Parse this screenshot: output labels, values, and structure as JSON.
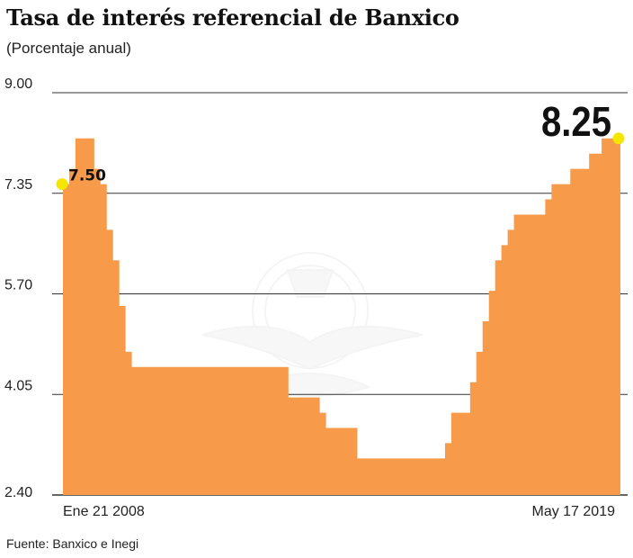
{
  "header": {
    "title": "Tasa de interés referencial de Banxico",
    "subtitle": "(Porcentaje anual)"
  },
  "footer": {
    "source": "Fuente: Banxico e Inegi"
  },
  "colors": {
    "area": "#f79a4a",
    "marker": "#f5e600",
    "gridline": "#333333"
  },
  "watermark_icon": "eagle-globe-emblem-icon",
  "chart_data": {
    "type": "area",
    "title": "Tasa de interés referencial de Banxico",
    "subtitle": "(Porcentaje anual)",
    "step": true,
    "ylim": [
      2.4,
      9.0
    ],
    "yticks": [
      "9.00",
      "7.35",
      "5.70",
      "4.05",
      "2.40"
    ],
    "grid": true,
    "x_labels": [
      "Ene 21 2008",
      "May 17 2019"
    ],
    "start_label": "7.50",
    "end_label": "8.25",
    "series": [
      {
        "values": [
          7.5,
          7.75,
          8.25,
          8.25,
          8.25,
          7.75,
          7.5,
          6.75,
          6.25,
          5.5,
          4.75,
          4.5,
          4.5,
          4.5,
          4.5,
          4.5,
          4.5,
          4.5,
          4.5,
          4.5,
          4.5,
          4.5,
          4.5,
          4.5,
          4.5,
          4.5,
          4.5,
          4.5,
          4.5,
          4.5,
          4.5,
          4.5,
          4.5,
          4.5,
          4.5,
          4.5,
          4.0,
          4.0,
          4.0,
          4.0,
          4.0,
          3.75,
          3.5,
          3.5,
          3.5,
          3.5,
          3.5,
          3.0,
          3.0,
          3.0,
          3.0,
          3.0,
          3.0,
          3.0,
          3.0,
          3.0,
          3.0,
          3.0,
          3.0,
          3.0,
          3.0,
          3.25,
          3.75,
          3.75,
          3.75,
          4.25,
          4.75,
          5.25,
          5.75,
          6.25,
          6.5,
          6.75,
          7.0,
          7.0,
          7.0,
          7.0,
          7.0,
          7.25,
          7.5,
          7.5,
          7.5,
          7.75,
          7.75,
          7.75,
          8.0,
          8.0,
          8.25,
          8.25,
          8.25
        ]
      }
    ]
  }
}
